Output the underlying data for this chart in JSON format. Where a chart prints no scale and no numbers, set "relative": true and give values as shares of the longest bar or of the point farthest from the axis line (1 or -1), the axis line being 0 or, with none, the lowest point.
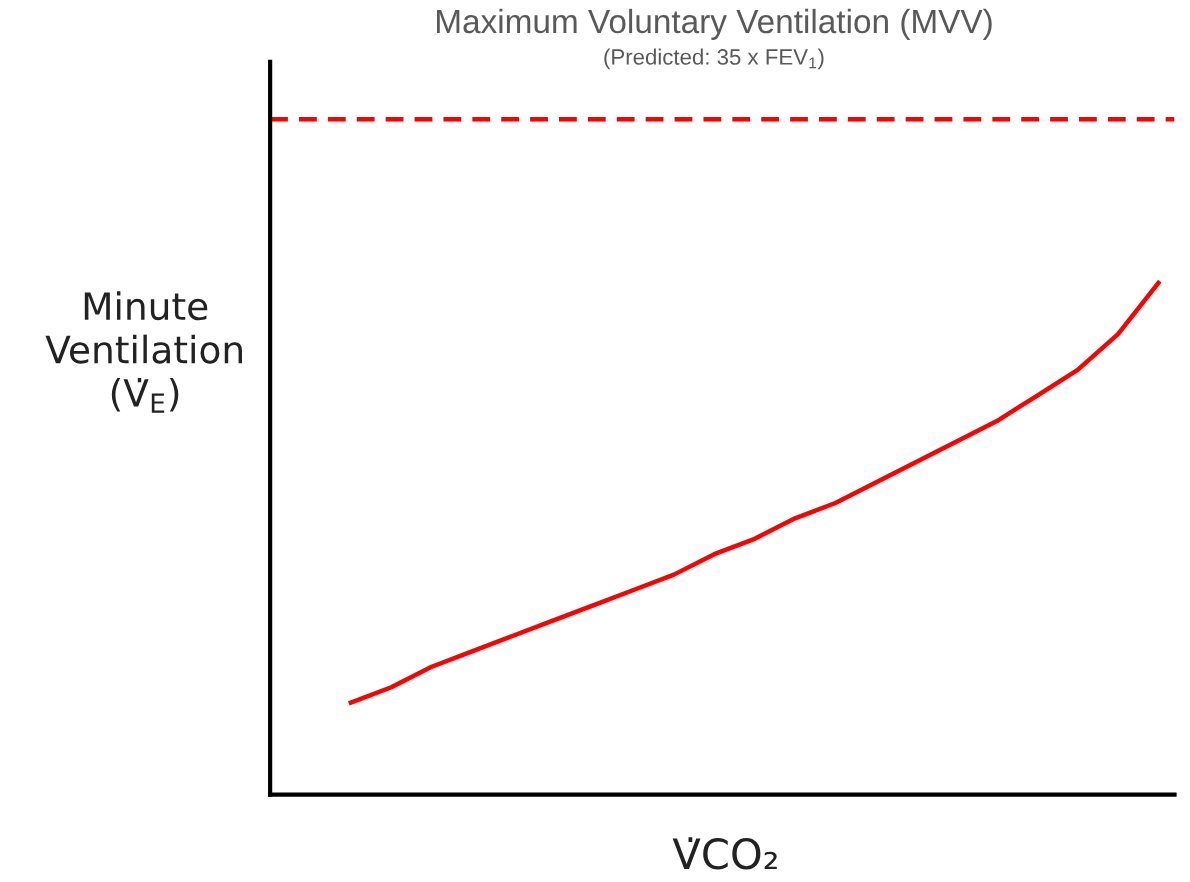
{
  "chart_data": {
    "type": "line",
    "relative": true,
    "title": "Maximum Voluntary Ventilation (MVV)",
    "subtitle": "(Predicted: 35 x FEV$_{1}$)",
    "xlabel": "V̇CO₂",
    "ylabel": "Minute\nVentilation\n(V̇$_{E}$)",
    "categories": [
      null,
      null,
      null,
      null,
      null,
      null,
      null,
      null,
      null,
      null,
      null,
      null,
      null,
      null,
      null,
      null,
      null,
      null,
      null,
      null,
      null,
      null,
      null
    ],
    "series": [
      {
        "color": "#ff0000",
        "values": [
          null,
          null,
          0.18,
          0.21,
          0.25,
          0.28,
          0.31,
          0.34,
          0.37,
          0.4,
          0.43,
          0.47,
          0.5,
          0.54,
          0.57,
          0.61,
          0.65,
          0.69,
          0.73,
          0.78,
          0.83,
          0.9,
          1.0
        ]
      }
    ],
    "ref_lines": [
      {
        "axis": "y",
        "value": 1.32,
        "color": "#ff0000",
        "line_style": "dashed"
      }
    ],
    "legend": false,
    "marker": "none",
    "line_style": "solid"
  }
}
